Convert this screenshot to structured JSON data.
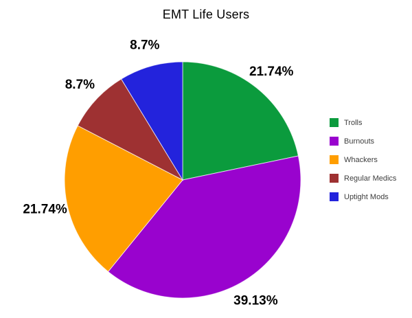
{
  "chart_data": {
    "type": "pie",
    "title": "EMT Life Users",
    "direction": "clockwise",
    "start_angle_deg": 0,
    "legend_position": "right",
    "labels_style": "outside-bold-percent",
    "background_color": "#ffffff",
    "slices": [
      {
        "label": "Trolls",
        "value": 21.74,
        "display": "21.74%",
        "color": "#0B9B3D"
      },
      {
        "label": "Burnouts",
        "value": 39.13,
        "display": "39.13%",
        "color": "#9903CE"
      },
      {
        "label": "Whackers",
        "value": 21.74,
        "display": "21.74%",
        "color": "#FF9E00"
      },
      {
        "label": "Regular Medics",
        "value": 8.7,
        "display": "8.7%",
        "color": "#9E3132"
      },
      {
        "label": "Uptight Mods",
        "value": 8.7,
        "display": "8.7%",
        "color": "#2323DC"
      }
    ]
  }
}
